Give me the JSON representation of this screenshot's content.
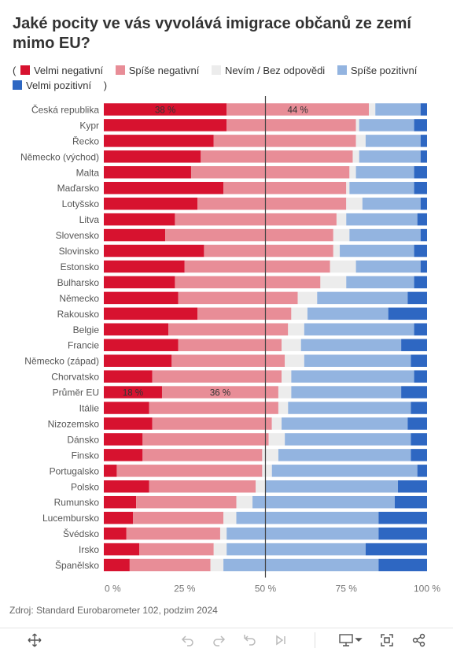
{
  "title": "Jaké pocity ve vás vyvolává imigrace občanů ze zemí mimo EU?",
  "legend_open": "(",
  "legend_close": ")",
  "source": "Zdroj: Standard Eurobarometer 102, podzim 2024",
  "colors": {
    "velmi_negativni": "#d7122f",
    "spise_negativni": "#e88d97",
    "nevim": "#ececec",
    "spise_pozitivni": "#93b4e0",
    "velmi_pozitivni": "#2e67c2"
  },
  "toolbar": [
    {
      "name": "expand-icon"
    },
    {
      "name": "undo-icon"
    },
    {
      "name": "redo-icon"
    },
    {
      "name": "revert-icon"
    },
    {
      "name": "forward-icon"
    },
    {
      "name": "presentation-icon"
    },
    {
      "name": "fullscreen-icon"
    },
    {
      "name": "share-icon"
    }
  ],
  "chart_data": {
    "type": "bar",
    "orientation": "horizontal",
    "stacked": true,
    "xlim": [
      0,
      100
    ],
    "x_ticks": [
      "0 %",
      "25 %",
      "50 %",
      "75 %",
      "100 %"
    ],
    "reference_line": 50,
    "categories": [
      "Česká republika",
      "Kypr",
      "Řecko",
      "Německo (východ)",
      "Malta",
      "Maďarsko",
      "Lotyšsko",
      "Litva",
      "Slovensko",
      "Slovinsko",
      "Estonsko",
      "Bulharsko",
      "Německo",
      "Rakousko",
      "Belgie",
      "Francie",
      "Německo (západ)",
      "Chorvatsko",
      "Průměr EU",
      "Itálie",
      "Nizozemsko",
      "Dánsko",
      "Finsko",
      "Portugalsko",
      "Polsko",
      "Rumunsko",
      "Lucembursko",
      "Švédsko",
      "Irsko",
      "Španělsko"
    ],
    "series": [
      {
        "name": "Velmi negativní",
        "color": "#d7122f",
        "values": [
          38,
          38,
          34,
          30,
          27,
          37,
          29,
          22,
          19,
          31,
          25,
          22,
          23,
          29,
          20,
          23,
          21,
          15,
          18,
          14,
          15,
          12,
          12,
          4,
          14,
          10,
          9,
          7,
          11,
          8
        ]
      },
      {
        "name": "Spíše negativní",
        "color": "#e88d97",
        "values": [
          44,
          40,
          44,
          47,
          49,
          38,
          46,
          50,
          52,
          40,
          45,
          45,
          37,
          29,
          37,
          32,
          35,
          40,
          36,
          40,
          37,
          39,
          37,
          45,
          33,
          31,
          28,
          29,
          23,
          25
        ]
      },
      {
        "name": "Nevím / Bez odpovědi",
        "color": "#ececec",
        "values": [
          2,
          1,
          3,
          2,
          2,
          1,
          5,
          3,
          5,
          2,
          8,
          8,
          6,
          5,
          5,
          6,
          6,
          3,
          4,
          3,
          3,
          5,
          5,
          3,
          3,
          5,
          4,
          2,
          4,
          4
        ]
      },
      {
        "name": "Spíše pozitivní",
        "color": "#93b4e0",
        "values": [
          14,
          17,
          17,
          19,
          18,
          20,
          18,
          22,
          22,
          23,
          20,
          21,
          28,
          25,
          34,
          31,
          33,
          38,
          34,
          38,
          39,
          39,
          41,
          45,
          41,
          44,
          44,
          47,
          43,
          48
        ]
      },
      {
        "name": "Velmi pozitivní",
        "color": "#2e67c2",
        "values": [
          2,
          4,
          2,
          2,
          4,
          4,
          2,
          3,
          2,
          4,
          2,
          4,
          6,
          12,
          4,
          8,
          5,
          4,
          8,
          5,
          6,
          5,
          5,
          3,
          9,
          10,
          15,
          15,
          19,
          15
        ]
      }
    ],
    "data_labels": [
      {
        "category": "Česká republika",
        "labels": [
          "38 %",
          "44 %"
        ]
      },
      {
        "category": "Průměr EU",
        "labels": [
          "18 %",
          "36 %"
        ]
      }
    ]
  }
}
